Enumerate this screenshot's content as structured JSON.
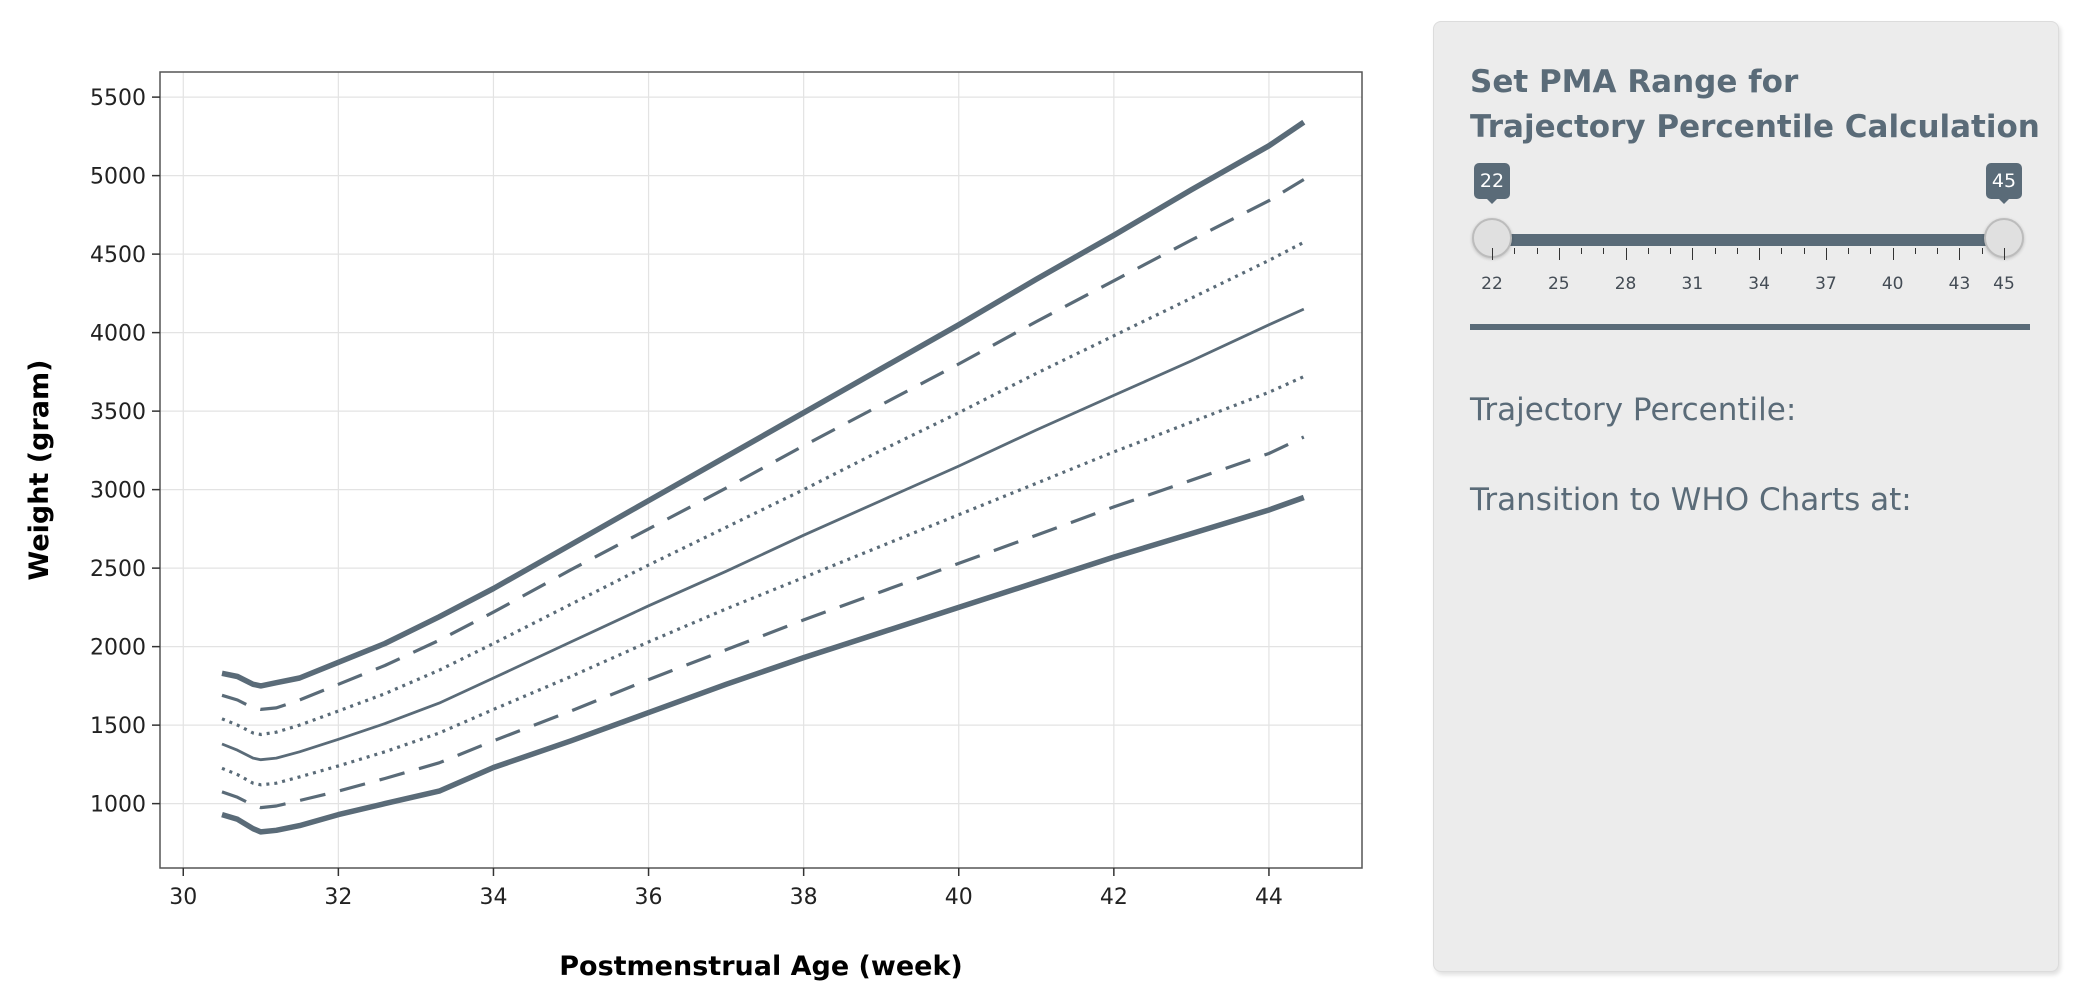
{
  "chart_data": {
    "type": "line",
    "xlabel": "Postmenstrual Age (week)",
    "ylabel": "Weight (gram)",
    "xlim": [
      29.7,
      45.2
    ],
    "ylim": [
      590,
      5660
    ],
    "xticks": [
      30,
      32,
      34,
      36,
      38,
      40,
      42,
      44
    ],
    "yticks": [
      1000,
      1500,
      2000,
      2500,
      3000,
      3500,
      4000,
      4500,
      5000,
      5500
    ],
    "grid": true,
    "legend": "none",
    "line_color": "#5a6b78",
    "series": [
      {
        "style": "solid-thick",
        "x": [
          30.5,
          30.7,
          30.9,
          31.0,
          31.2,
          31.5,
          32.0,
          32.6,
          33.3,
          34.0,
          35.0,
          36.0,
          37.0,
          38.0,
          39.0,
          40.0,
          41.0,
          42.0,
          43.0,
          44.0,
          44.45
        ],
        "y": [
          930,
          900,
          840,
          820,
          830,
          860,
          930,
          1000,
          1080,
          1230,
          1400,
          1580,
          1760,
          1930,
          2090,
          2250,
          2410,
          2570,
          2720,
          2870,
          2950
        ]
      },
      {
        "style": "dashed",
        "x": [
          30.5,
          30.7,
          30.9,
          31.0,
          31.2,
          31.5,
          32.0,
          32.6,
          33.3,
          34.0,
          35.0,
          36.0,
          37.0,
          38.0,
          39.0,
          40.0,
          41.0,
          42.0,
          43.0,
          44.0,
          44.45
        ],
        "y": [
          1075,
          1040,
          990,
          975,
          985,
          1020,
          1080,
          1160,
          1260,
          1400,
          1590,
          1790,
          1980,
          2170,
          2350,
          2530,
          2710,
          2890,
          3060,
          3230,
          3335
        ]
      },
      {
        "style": "dotted",
        "x": [
          30.5,
          30.7,
          30.9,
          31.0,
          31.2,
          31.5,
          32.0,
          32.6,
          33.3,
          34.0,
          35.0,
          36.0,
          37.0,
          38.0,
          39.0,
          40.0,
          41.0,
          42.0,
          43.0,
          44.0,
          44.45
        ],
        "y": [
          1225,
          1185,
          1130,
          1120,
          1130,
          1170,
          1240,
          1330,
          1450,
          1600,
          1810,
          2030,
          2240,
          2440,
          2640,
          2840,
          3040,
          3240,
          3430,
          3620,
          3720
        ]
      },
      {
        "style": "solid",
        "x": [
          30.5,
          30.7,
          30.9,
          31.0,
          31.2,
          31.5,
          32.0,
          32.6,
          33.3,
          34.0,
          35.0,
          36.0,
          37.0,
          38.0,
          39.0,
          40.0,
          41.0,
          42.0,
          43.0,
          44.0,
          44.45
        ],
        "y": [
          1380,
          1340,
          1290,
          1280,
          1290,
          1330,
          1410,
          1510,
          1640,
          1800,
          2030,
          2260,
          2480,
          2710,
          2930,
          3150,
          3380,
          3600,
          3820,
          4050,
          4150
        ]
      },
      {
        "style": "dotted",
        "x": [
          30.5,
          30.7,
          30.9,
          31.0,
          31.2,
          31.5,
          32.0,
          32.6,
          33.3,
          34.0,
          35.0,
          36.0,
          37.0,
          38.0,
          39.0,
          40.0,
          41.0,
          42.0,
          43.0,
          44.0,
          44.45
        ],
        "y": [
          1540,
          1500,
          1450,
          1440,
          1455,
          1500,
          1590,
          1700,
          1850,
          2020,
          2270,
          2520,
          2760,
          3000,
          3250,
          3490,
          3740,
          3980,
          4220,
          4460,
          4575
        ]
      },
      {
        "style": "dashed",
        "x": [
          30.5,
          30.7,
          30.9,
          31.0,
          31.2,
          31.5,
          32.0,
          32.6,
          33.3,
          34.0,
          35.0,
          36.0,
          37.0,
          38.0,
          39.0,
          40.0,
          41.0,
          42.0,
          43.0,
          44.0,
          44.45
        ],
        "y": [
          1690,
          1660,
          1610,
          1600,
          1610,
          1660,
          1760,
          1880,
          2040,
          2220,
          2490,
          2750,
          3010,
          3280,
          3540,
          3800,
          4070,
          4330,
          4590,
          4840,
          4975
        ]
      },
      {
        "style": "solid-thick",
        "x": [
          30.5,
          30.7,
          30.9,
          31.0,
          31.2,
          31.5,
          32.0,
          32.6,
          33.3,
          34.0,
          35.0,
          36.0,
          37.0,
          38.0,
          39.0,
          40.0,
          41.0,
          42.0,
          43.0,
          44.0,
          44.45
        ],
        "y": [
          1830,
          1810,
          1760,
          1750,
          1770,
          1800,
          1900,
          2020,
          2190,
          2370,
          2650,
          2930,
          3210,
          3490,
          3770,
          4050,
          4340,
          4620,
          4910,
          5190,
          5340
        ]
      }
    ]
  },
  "panel": {
    "title_line1": "Set PMA Range for",
    "title_line2": "Trajectory Percentile Calculation",
    "slider": {
      "min": 22,
      "max": 45,
      "from": 22,
      "to": 45,
      "from_label": "22",
      "to_label": "45",
      "tick_labels": [
        "22",
        "25",
        "28",
        "31",
        "34",
        "37",
        "40",
        "43",
        "45"
      ]
    },
    "trajectory_label": "Trajectory Percentile:",
    "transition_label": "Transition to WHO Charts at:"
  }
}
